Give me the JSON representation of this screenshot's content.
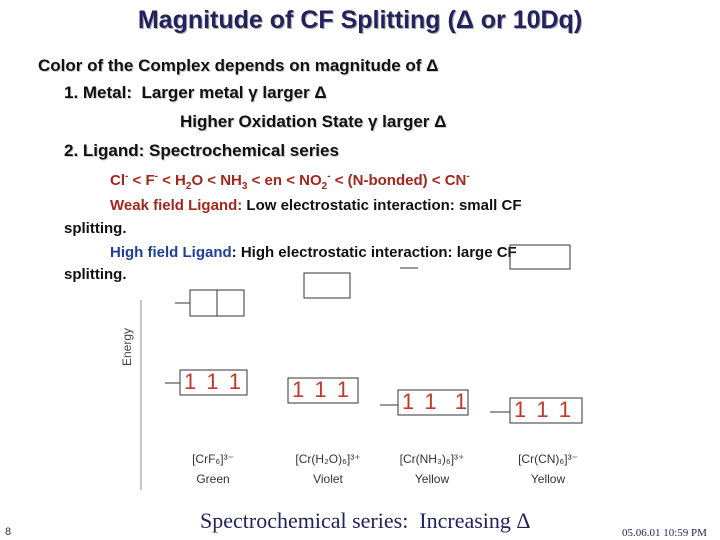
{
  "title": "Magnitude of CF Splitting (Δ or 10Dq)",
  "intro": "Color of the Complex depends on magnitude of Δ",
  "points": [
    "1. Metal:  Larger metal γ larger Δ",
    "Higher Oxidation State γ larger Δ",
    "2. Ligand: Spectrochemical series"
  ],
  "series": [
    {
      "text": "Cl",
      "sup": "-"
    },
    {
      "text": " < F",
      "sup": "-"
    },
    {
      "text": " < H",
      "sub": "2"
    },
    {
      "text": "O < NH",
      "sub": "3"
    },
    {
      "text": " < en < NO",
      "sub": "2",
      "sup": "-"
    },
    {
      "text": " < (N-bonded) < CN",
      "sup": "-"
    }
  ],
  "weak_field": {
    "label": "Weak field Ligand:",
    "text": " Low electrostatic interaction: small CF",
    "continuation": "splitting."
  },
  "high_field": {
    "label": "High field Ligand",
    "text": ": High electrostatic interaction: large CF",
    "continuation": "splitting."
  },
  "diagram": {
    "energy": "Energy",
    "complexes": [
      {
        "electrons": "1 1 1",
        "formula": "[CrF₆]³⁻",
        "color": "Green"
      },
      {
        "electrons": "1 1 1",
        "formula": "[Cr(H₂O)₆]³⁺",
        "color": "Violet"
      },
      {
        "electrons": "1 1  1",
        "formula": "[Cr(NH₃)₆]³⁺",
        "color": "Yellow"
      },
      {
        "electrons": "1 1 1",
        "formula": "[Cr(CN)₆]³⁻",
        "color": "Yellow"
      }
    ]
  },
  "caption": "Spectrochemical series:  Increasing Δ",
  "page_number": "8",
  "date": "05.06.01 10:59 PM"
}
